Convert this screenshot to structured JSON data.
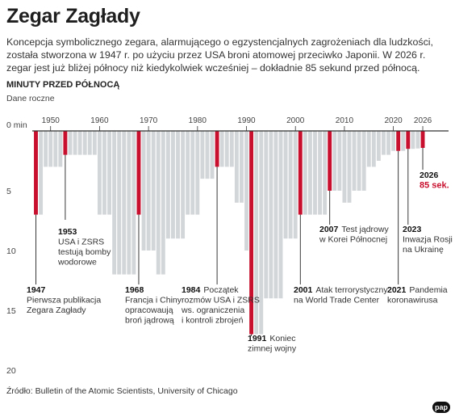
{
  "header": {
    "title": "Zegar Zagłady",
    "description": "Koncepcja symbolicznego zegara, alarmującego o egzystencjalnych zagrożeniach dla ludzkości, została stworzona w 1947 r. po użyciu przez USA broni atomowej przeciwko Japonii. W 2026 r. zegar jest już bliżej północy niż kiedykolwiek wcześniej – dokładnie 85 sekund przed północą."
  },
  "chart_data": {
    "type": "bar",
    "title": "MINUTY PRZED PÓŁNOCĄ",
    "subtitle": "Dane roczne",
    "ylabel": "",
    "xlabel": "",
    "ylim": [
      0,
      20
    ],
    "y_inverted": true,
    "y_ticks": [
      0,
      5,
      10,
      15,
      20
    ],
    "y_tick_labels": [
      "0 min",
      "5",
      "10",
      "15",
      "20"
    ],
    "x_ticks": [
      1950,
      1960,
      1970,
      1980,
      1990,
      2000,
      2010,
      2020,
      2026
    ],
    "x_range": [
      1946,
      2027
    ],
    "grid": false,
    "colors": {
      "bar": "#d3d6d9",
      "highlight": "#c8102e",
      "axis": "#333333"
    },
    "series": [
      {
        "x": [
          1947,
          1948,
          1949,
          1950,
          1951,
          1952,
          1953,
          1954,
          1955,
          1956,
          1957,
          1958,
          1959,
          1960,
          1961,
          1962,
          1963,
          1964,
          1965,
          1966,
          1967,
          1968,
          1969,
          1970,
          1971,
          1972,
          1973,
          1974,
          1975,
          1976,
          1977,
          1978,
          1979,
          1980,
          1981,
          1982,
          1983,
          1984,
          1985,
          1986,
          1987,
          1988,
          1989,
          1990,
          1991,
          1992,
          1993,
          1994,
          1995,
          1996,
          1997,
          1998,
          1999,
          2000,
          2001,
          2002,
          2003,
          2004,
          2005,
          2006,
          2007,
          2008,
          2009,
          2010,
          2011,
          2012,
          2013,
          2014,
          2015,
          2016,
          2017,
          2018,
          2019,
          2020,
          2021,
          2022,
          2023,
          2024,
          2025,
          2026
        ],
        "values": [
          7,
          7,
          3,
          3,
          3,
          3,
          2,
          2,
          2,
          2,
          2,
          2,
          2,
          7,
          7,
          7,
          12,
          12,
          12,
          12,
          12,
          7,
          10,
          10,
          10,
          12,
          12,
          9,
          9,
          9,
          9,
          7,
          7,
          7,
          4,
          4,
          4,
          3,
          3,
          3,
          3,
          6,
          6,
          10,
          17,
          17,
          17,
          14,
          14,
          14,
          14,
          9,
          9,
          9,
          7,
          7,
          7,
          7,
          7,
          7,
          5,
          5,
          5,
          6,
          6,
          5,
          5,
          5,
          3,
          3,
          2.5,
          2,
          2,
          1.67,
          1.67,
          1.67,
          1.5,
          1.5,
          1.47,
          1.42
        ],
        "highlight": [
          1947,
          1953,
          1968,
          1984,
          1991,
          2001,
          2007,
          2021,
          2023,
          2026
        ]
      }
    ],
    "annotations": [
      {
        "year": "1947",
        "text": [
          "Pierwsza publikacja",
          "Zegara Zagłady"
        ]
      },
      {
        "year": "1953",
        "text": [
          "USA i ZSRS",
          "testują bomby",
          "wodorowe"
        ]
      },
      {
        "year": "1968",
        "text": [
          "Francja i Chiny",
          "opracowaują",
          "broń jądrową"
        ]
      },
      {
        "year": "1984",
        "text": [
          "Początek",
          "rozmów USA i ZSRS",
          "ws. ograniczenia",
          "i kontroli zbrojeń"
        ]
      },
      {
        "year": "1991",
        "text": [
          "Koniec",
          "zimnej wojny"
        ]
      },
      {
        "year": "2001",
        "text": [
          "Atak terrorystyczny",
          "na World Trade Center"
        ]
      },
      {
        "year": "2007",
        "text": [
          "Test jądrowy",
          "w Korei Północnej"
        ]
      },
      {
        "year": "2021",
        "text": [
          "Pandemia",
          "koronawirusa"
        ]
      },
      {
        "year": "2023",
        "text": [
          "Inwazja Rosji",
          "na Ukrainę"
        ]
      },
      {
        "year": "2026",
        "text": [
          "85 sek."
        ]
      }
    ]
  },
  "footer": {
    "source": "Źródło: Bulletin of the Atomic Scientists, University of Chicago",
    "logo": "pap"
  }
}
